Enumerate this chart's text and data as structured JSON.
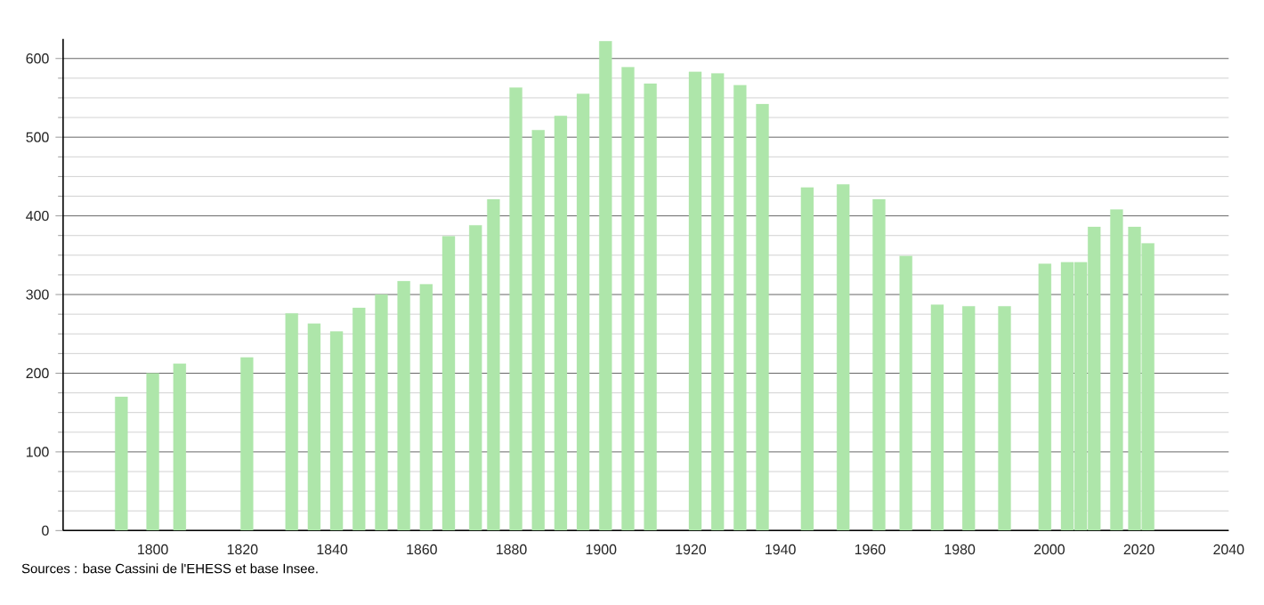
{
  "chart_data": {
    "type": "bar",
    "series": [
      {
        "color": "#aee6aa",
        "x": [
          1793,
          1800,
          1806,
          1821,
          1831,
          1836,
          1841,
          1846,
          1851,
          1856,
          1861,
          1866,
          1872,
          1876,
          1881,
          1886,
          1891,
          1896,
          1901,
          1906,
          1911,
          1921,
          1926,
          1931,
          1936,
          1946,
          1954,
          1962,
          1968,
          1975,
          1982,
          1990,
          1999,
          2004,
          2007,
          2010,
          2015,
          2019,
          2022
        ],
        "values": [
          170,
          200,
          212,
          220,
          276,
          263,
          253,
          283,
          300,
          317,
          313,
          374,
          388,
          421,
          563,
          509,
          527,
          555,
          622,
          589,
          568,
          583,
          581,
          566,
          542,
          436,
          440,
          421,
          349,
          287,
          285,
          285,
          339,
          341,
          341,
          386,
          408,
          386,
          365
        ]
      }
    ],
    "xlim": [
      1780,
      2040
    ],
    "ylim": [
      0,
      625
    ],
    "xticks": [
      1800,
      1820,
      1840,
      1860,
      1880,
      1900,
      1920,
      1940,
      1960,
      1980,
      2000,
      2020,
      2040
    ],
    "yticks": [
      0,
      100,
      200,
      300,
      400,
      500,
      600
    ],
    "grid": "y",
    "annotations": [
      "Sources : base Cassini de l'EHESS et base Insee."
    ]
  }
}
